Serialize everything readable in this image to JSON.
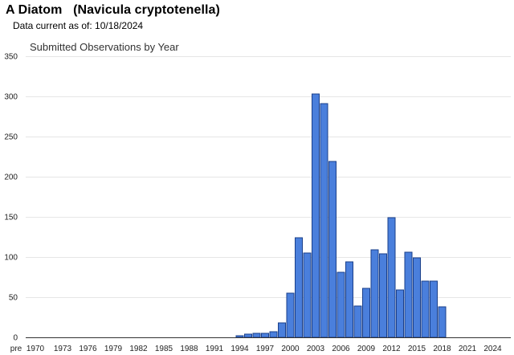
{
  "header": {
    "title": "A Diatom   (Navicula cryptotenella)",
    "subtitle": "Data current as of: 10/18/2024"
  },
  "chart_data": {
    "type": "bar",
    "title": "Submitted Observations by Year",
    "xlabel": "",
    "ylabel": "",
    "ylim": [
      0,
      350
    ],
    "yticks": [
      0,
      50,
      100,
      150,
      200,
      250,
      300,
      350
    ],
    "x_tick_labels": [
      "pre",
      "1970",
      "1973",
      "1976",
      "1979",
      "1982",
      "1985",
      "1988",
      "1991",
      "1994",
      "1997",
      "2000",
      "2003",
      "2006",
      "2009",
      "2012",
      "2015",
      "2018",
      "2021",
      "2024"
    ],
    "grid": true,
    "legend": "none",
    "colors": {
      "bar_fill": "#4a7fdc",
      "bar_stroke": "#1a3f8a"
    },
    "categories": [
      "pre",
      "1970",
      "1971",
      "1972",
      "1973",
      "1974",
      "1975",
      "1976",
      "1977",
      "1978",
      "1979",
      "1980",
      "1981",
      "1982",
      "1983",
      "1984",
      "1985",
      "1986",
      "1987",
      "1988",
      "1989",
      "1990",
      "1991",
      "1992",
      "1993",
      "1994",
      "1995",
      "1996",
      "1997",
      "1998",
      "1999",
      "2000",
      "2001",
      "2002",
      "2003",
      "2004",
      "2005",
      "2006",
      "2007",
      "2008",
      "2009",
      "2010",
      "2011",
      "2012",
      "2013",
      "2014",
      "2015",
      "2016",
      "2017",
      "2018",
      "2019",
      "2020",
      "2021",
      "2022",
      "2023",
      "2024"
    ],
    "values": [
      0,
      0,
      0,
      0,
      0,
      0,
      0,
      0,
      0,
      0,
      0,
      0,
      0,
      0,
      0,
      0,
      0,
      0,
      0,
      0,
      0,
      0,
      0,
      0,
      0,
      2,
      4,
      5,
      5,
      7,
      18,
      55,
      124,
      105,
      303,
      291,
      219,
      81,
      94,
      39,
      61,
      109,
      104,
      149,
      59,
      106,
      99,
      70,
      70,
      38,
      0,
      0,
      0,
      0,
      0,
      0
    ]
  }
}
